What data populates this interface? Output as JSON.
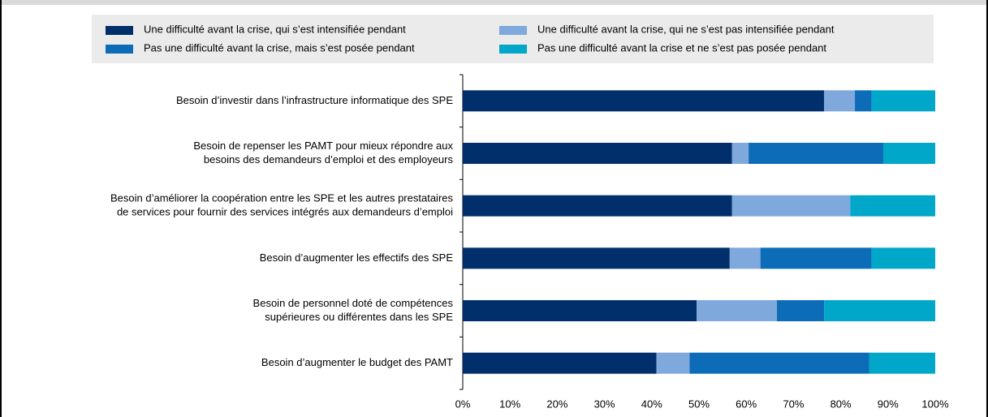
{
  "chart_data": {
    "type": "stacked_barh",
    "categories": [
      [
        "Besoin d’investir dans l’infrastructure informatique des SPE"
      ],
      [
        "Besoin de repenser les PAMT pour mieux répondre aux",
        "besoins des demandeurs d’emploi et des employeurs"
      ],
      [
        "Besoin d’améliorer la coopération entre les SPE et les autres prestataires",
        "de services pour fournir des services intégrés aux demandeurs d’emploi"
      ],
      [
        "Besoin d’augmenter les effectifs des SPE"
      ],
      [
        "Besoin de personnel doté de compétences",
        "supérieures ou différentes dans les SPE"
      ],
      [
        "Besoin d’augmenter le budget des PAMT"
      ]
    ],
    "series": [
      {
        "name": "Une difficulté avant la crise, qui s’est intensifiée pendant",
        "color": "#002f6c",
        "values": [
          76.5,
          57,
          57,
          56.5,
          49.5,
          41
        ]
      },
      {
        "name": "Une difficulté avant la crise, qui ne s’est pas intensifiée pendant",
        "color": "#7fa8dc",
        "values": [
          6.5,
          3.5,
          25,
          6.5,
          17,
          7
        ]
      },
      {
        "name": "Pas une difficulté avant la crise, mais s’est posée pendant",
        "color": "#0d6cb7",
        "values": [
          3.5,
          28.5,
          0,
          23.5,
          10,
          38
        ]
      },
      {
        "name": "Pas une difficulté avant la crise et ne s’est pas posée pendant",
        "color": "#00a7c9",
        "values": [
          13.5,
          11,
          18,
          13.5,
          23.5,
          14
        ]
      }
    ],
    "xlim": [
      0,
      100
    ],
    "xticks": [
      {
        "value": 0,
        "label": "0%"
      },
      {
        "value": 10,
        "label": "10%"
      },
      {
        "value": 20,
        "label": "20%"
      },
      {
        "value": 30,
        "label": "30%"
      },
      {
        "value": 40,
        "label": "40%"
      },
      {
        "value": 50,
        "label": "50%"
      },
      {
        "value": 60,
        "label": "60%"
      },
      {
        "value": 70,
        "label": "70%"
      },
      {
        "value": 80,
        "label": "80%"
      },
      {
        "value": 90,
        "label": "90%"
      },
      {
        "value": 100,
        "label": "100%"
      }
    ]
  }
}
